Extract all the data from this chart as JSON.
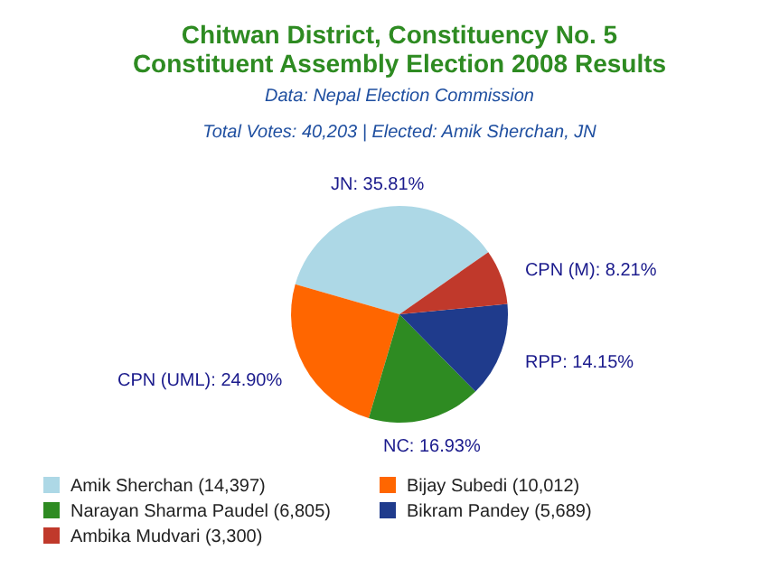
{
  "chart_data": {
    "type": "pie",
    "title": "Chitwan District, Constituency No. 5",
    "subtitle": "Constituent Assembly Election 2008 Results",
    "annotations": [
      "Data: Nepal Election Commission",
      "Total Votes: 40,203 | Elected: Amik Sherchan, JN"
    ],
    "categories": [
      "Amik Sherchan (14,397)",
      "Bijay Subedi (10,012)",
      "Narayan Sharma Paudel (6,805)",
      "Bikram Pandey (5,689)",
      "Ambika Mudvari (3,300)"
    ],
    "values": [
      35.81,
      24.9,
      16.93,
      14.15,
      8.21
    ],
    "value_labels": [
      "JN: 35.81%",
      "CPN (UML): 24.90%",
      "NC: 16.93%",
      "RPP: 14.15%",
      "CPN (M): 8.21%"
    ],
    "colors": [
      "#add8e6",
      "#ff6600",
      "#2e8b22",
      "#1f3b8c",
      "#c0392b"
    ],
    "legend": "bottom"
  }
}
